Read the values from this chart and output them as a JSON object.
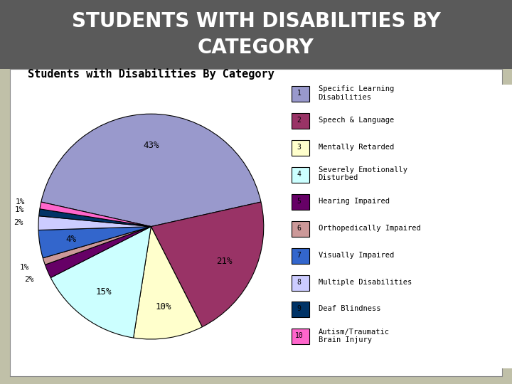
{
  "title": "Students with Disabilities By Category",
  "main_title": "STUDENTS WITH DISABILITIES BY\nCATEGORY",
  "main_title_bg": "#5a5a5a",
  "main_title_color": "#ffffff",
  "categories": [
    "Specific Learning\nDisabilities",
    "Speech & Language",
    "Mentally Retarded",
    "Severely Emotionally\nDisturbed",
    "Hearing Impaired",
    "Orthopedically Impaired",
    "Visually Impaired",
    "Multiple Disabilities",
    "Deaf Blindness",
    "Autism/Traumatic\nBrain Injury"
  ],
  "values": [
    43,
    21,
    10,
    15,
    2,
    1,
    4,
    2,
    1,
    1
  ],
  "colors": [
    "#9999cc",
    "#993366",
    "#ffffcc",
    "#ccffff",
    "#660066",
    "#cc9999",
    "#3366cc",
    "#ccccff",
    "#003366",
    "#ff66cc"
  ],
  "labels": [
    "43%",
    "21%",
    "10%",
    "15%",
    "2%",
    "1%",
    "4%",
    "2%",
    "1%",
    "1%"
  ],
  "background_color": "#c0c0a8",
  "chart_bg": "#ffffff"
}
